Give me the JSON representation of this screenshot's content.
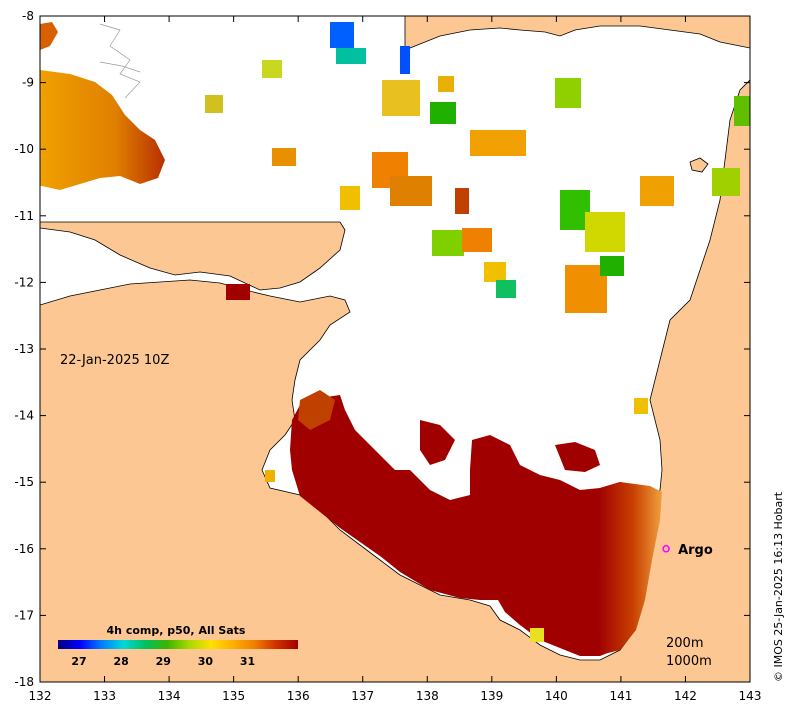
{
  "chart_data": {
    "type": "heatmap",
    "x_ticks": [
      "132",
      "133",
      "134",
      "135",
      "136",
      "137",
      "138",
      "139",
      "140",
      "141",
      "142",
      "143"
    ],
    "y_ticks": [
      "-8",
      "-9",
      "-10",
      "-11",
      "-12",
      "-13",
      "-14",
      "-15",
      "-16",
      "-17",
      "-18"
    ],
    "xlim": [
      132,
      143
    ],
    "ylim": [
      -18,
      -8
    ],
    "timestamp": "22-Jan-2025 10Z",
    "colorbar": {
      "title": "4h comp, p50, All Sats",
      "ticks": [
        "27",
        "28",
        "29",
        "30",
        "31"
      ],
      "range": [
        26.5,
        32.2
      ],
      "colors": [
        "#00007f",
        "#0000ff",
        "#007fff",
        "#00d8d8",
        "#00c060",
        "#3cb400",
        "#a8d800",
        "#ffe000",
        "#ffb000",
        "#f08000",
        "#d03000",
        "#a00000"
      ]
    },
    "marker": {
      "label": "Argo",
      "lon": 141.7,
      "lat": -16.0,
      "color": "#ff00ff"
    },
    "depth_contours": [
      "200m",
      "1000m"
    ],
    "colors": {
      "land": "#fdc793",
      "no_data": "#ffffff",
      "coast": "#000000",
      "warm": "#a00000"
    },
    "credit": "© IMOS 25-Jan-2025 16:13 Hobart"
  }
}
